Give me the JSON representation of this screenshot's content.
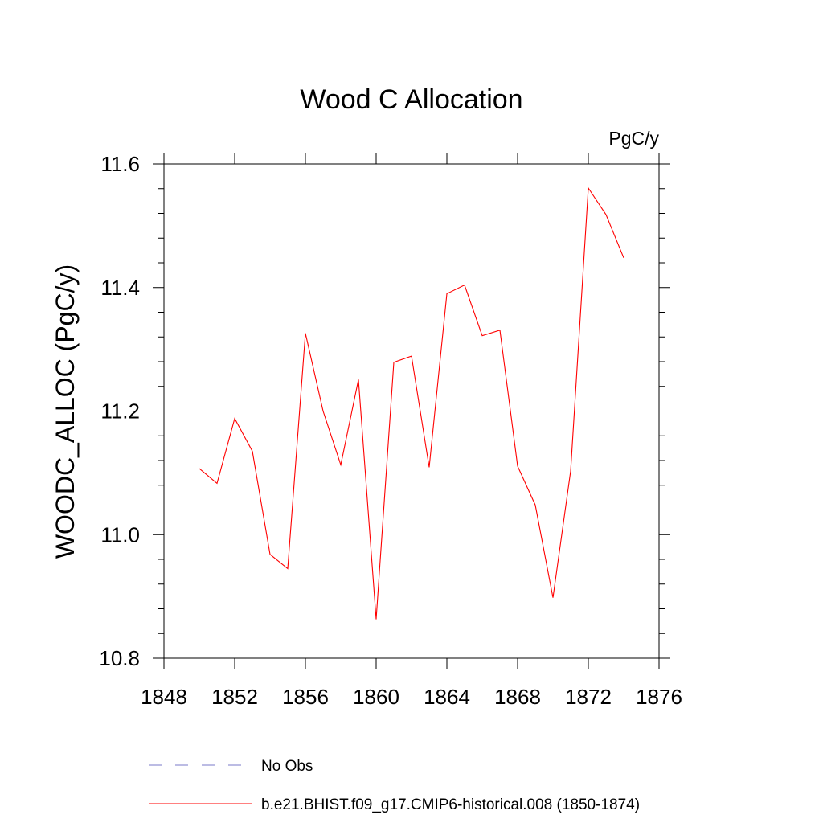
{
  "chart_data": {
    "type": "line",
    "title": "Wood C Allocation",
    "units_label": "PgC/y",
    "ylabel": "WOODC_ALLOC  (PgC/y)",
    "xlabel": "",
    "xlim": [
      1848,
      1876
    ],
    "ylim": [
      10.8,
      11.6
    ],
    "x_ticks": [
      1848,
      1852,
      1856,
      1860,
      1864,
      1868,
      1872,
      1876
    ],
    "x_tick_labels": [
      "1848",
      "1852",
      "1856",
      "1860",
      "1864",
      "1868",
      "1872",
      "1876"
    ],
    "y_ticks": [
      10.8,
      11.0,
      11.2,
      11.4,
      11.6
    ],
    "y_tick_labels": [
      "10.8",
      "11.0",
      "11.2",
      "11.4",
      "11.6"
    ],
    "grid": false,
    "legend_position": "bottom",
    "series": [
      {
        "name": "b.e21.BHIST.f09_g17.CMIP6-historical.008 (1850-1874)",
        "color": "#ff0000",
        "style": "solid",
        "x": [
          1850,
          1851,
          1852,
          1853,
          1854,
          1855,
          1856,
          1857,
          1858,
          1859,
          1860,
          1861,
          1862,
          1863,
          1864,
          1865,
          1866,
          1867,
          1868,
          1869,
          1870,
          1871,
          1872,
          1873,
          1874
        ],
        "y": [
          11.107,
          11.083,
          11.188,
          11.135,
          10.968,
          10.945,
          11.326,
          11.2,
          11.113,
          11.251,
          10.863,
          11.279,
          11.289,
          11.109,
          11.39,
          11.404,
          11.322,
          11.331,
          11.111,
          11.048,
          10.898,
          11.103,
          11.561,
          11.518,
          11.448
        ]
      }
    ],
    "legend": [
      {
        "label": "No Obs",
        "color": "#7a78c8",
        "style": "dashed"
      },
      {
        "label": "b.e21.BHIST.f09_g17.CMIP6-historical.008 (1850-1874)",
        "color": "#ff0000",
        "style": "solid"
      }
    ]
  }
}
